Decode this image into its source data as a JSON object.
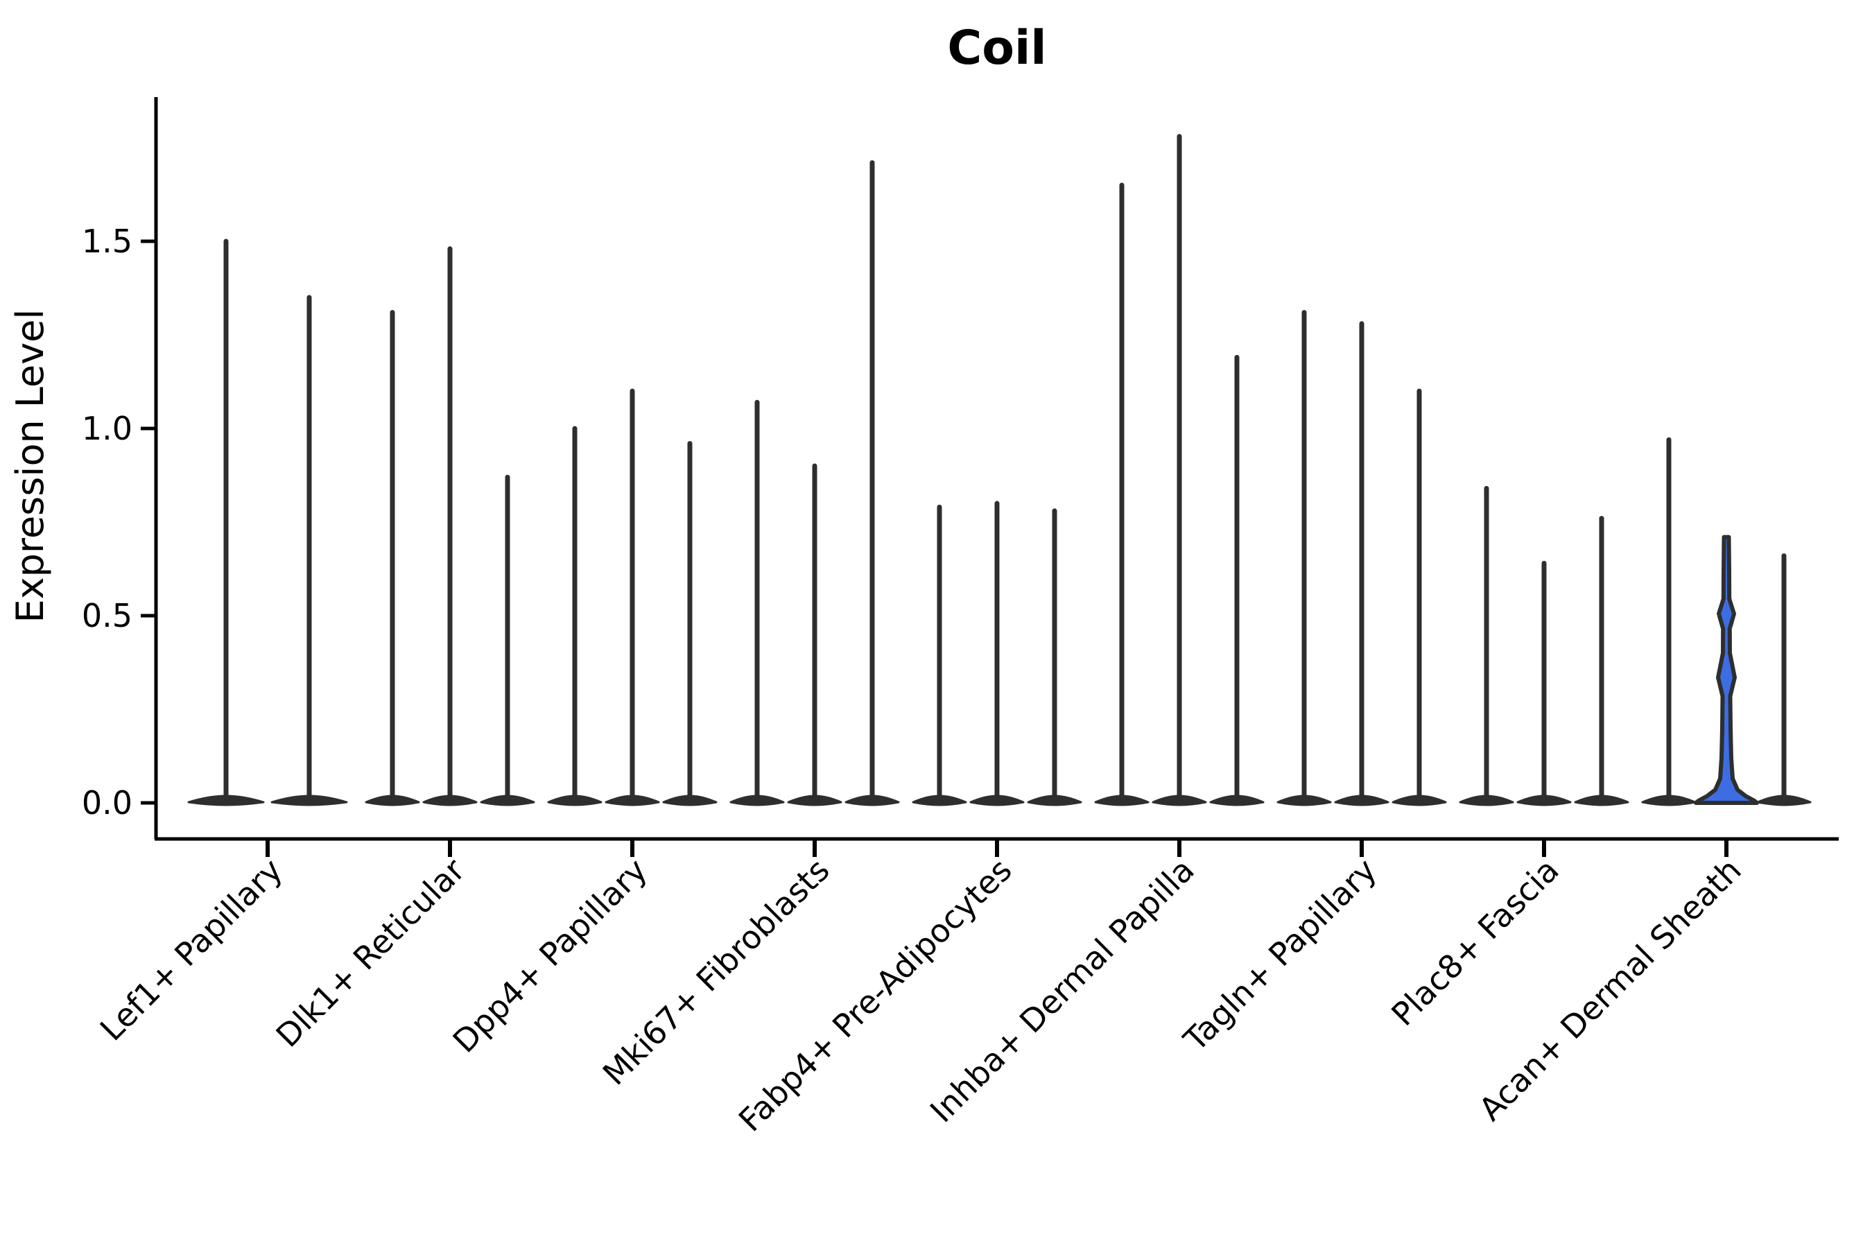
{
  "title": "Coil",
  "y_axis": {
    "label": "Expression Level",
    "tick_labels": [
      "0.0",
      "0.5",
      "1.0",
      "1.5"
    ],
    "tick_values": [
      0.0,
      0.5,
      1.0,
      1.5
    ]
  },
  "colors": {
    "background": "#ffffff",
    "axis": "#000000",
    "text": "#000000",
    "violin_stroke": "#2e2e2e",
    "highlight_fill": "#3d6de3"
  },
  "chart_data": {
    "type": "violin",
    "title": "Coil",
    "xlabel": "",
    "ylabel": "Expression Level",
    "grid": false,
    "legend_position": "none",
    "ylim": [
      -0.1,
      1.88
    ],
    "ytick_values": [
      0.0,
      0.5,
      1.0,
      1.5
    ],
    "ytick_labels": [
      "0.0",
      "0.5",
      "1.0",
      "1.5"
    ],
    "categories": [
      "Lef1+ Papillary",
      "Dlk1+ Reticular",
      "Dpp4+ Papillary",
      "Mki67+ Fibroblasts",
      "Fabp4+ Pre-Adipocytes",
      "Inhba+ Dermal Papilla",
      "Tagln+ Papillary",
      "Plac8+ Fascia",
      "Acan+ Dermal Sheath"
    ],
    "description": "Needle-thin violin plots of Coil expression per fibroblast cell type; most mass at 0 with thin spikes to the max expression value; one violin (2nd of Acan+ Dermal Sheath) is filled blue with visible density bulges.",
    "groups": [
      {
        "category": "Lef1+ Papillary",
        "violin_max_values": [
          1.5,
          1.35
        ]
      },
      {
        "category": "Dlk1+ Reticular",
        "violin_max_values": [
          1.31,
          1.48,
          0.87
        ]
      },
      {
        "category": "Dpp4+ Papillary",
        "violin_max_values": [
          1.0,
          1.1,
          0.96
        ]
      },
      {
        "category": "Mki67+ Fibroblasts",
        "violin_max_values": [
          1.07,
          0.9,
          1.71
        ]
      },
      {
        "category": "Fabp4+ Pre-Adipocytes",
        "violin_max_values": [
          0.79,
          0.8,
          0.78
        ]
      },
      {
        "category": "Inhba+ Dermal Papilla",
        "violin_max_values": [
          1.65,
          1.78,
          1.19
        ]
      },
      {
        "category": "Tagln+ Papillary",
        "violin_max_values": [
          1.31,
          1.28,
          1.1
        ]
      },
      {
        "category": "Plac8+ Fascia",
        "violin_max_values": [
          0.84,
          0.64,
          0.76
        ]
      },
      {
        "category": "Acan+ Dermal Sheath",
        "violin_max_values": [
          0.97,
          0.71,
          0.66
        ],
        "highlight_index": 1,
        "highlight_profile": [
          [
            0.71,
            3.5
          ],
          [
            0.62,
            4.0
          ],
          [
            0.545,
            4.2
          ],
          [
            0.505,
            11.0
          ],
          [
            0.465,
            4.8
          ],
          [
            0.4,
            5.0
          ],
          [
            0.335,
            12.0
          ],
          [
            0.285,
            5.5
          ],
          [
            0.2,
            6.0
          ],
          [
            0.12,
            7.0
          ],
          [
            0.065,
            9.0
          ],
          [
            0.035,
            16.0
          ],
          [
            0.018,
            28.0
          ],
          [
            0.006,
            40.0
          ],
          [
            0.0,
            44.0
          ]
        ]
      }
    ]
  }
}
